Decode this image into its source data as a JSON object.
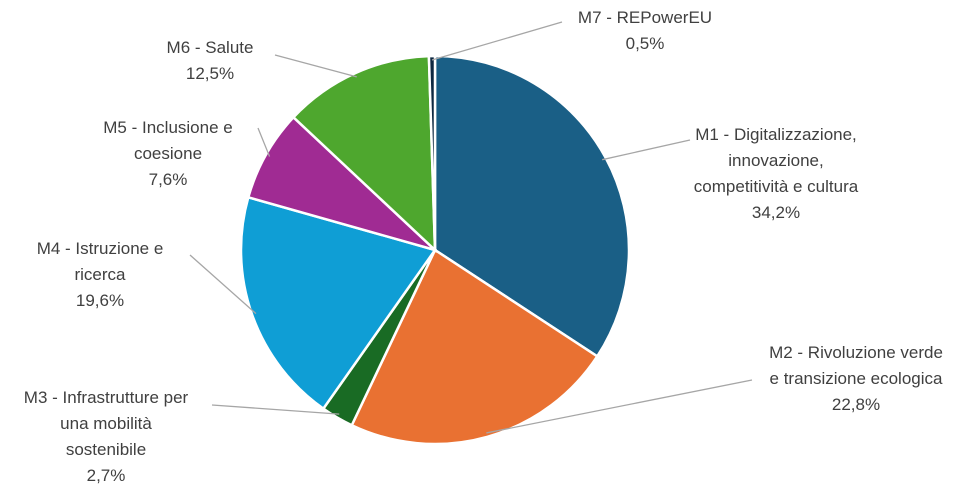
{
  "chart_data": {
    "type": "pie",
    "categories": [
      "M1 - Digitalizzazione, innovazione, competitività e cultura",
      "M2 - Rivoluzione verde e transizione ecologica",
      "M3 - Infrastrutture per una mobilità sostenibile",
      "M4 - Istruzione e ricerca",
      "M5 - Inclusione e coesione",
      "M6 - Salute",
      "M7 - REPowerEU"
    ],
    "values": [
      34.2,
      22.8,
      2.7,
      19.6,
      7.6,
      12.5,
      0.5
    ],
    "value_labels": [
      "34,2%",
      "22,8%",
      "2,7%",
      "19,6%",
      "7,6%",
      "12,5%",
      "0,5%"
    ],
    "colors": [
      "#1a5f86",
      "#e97132",
      "#196b24",
      "#0f9ed5",
      "#a02b93",
      "#4ea72e",
      "#0e2841"
    ]
  }
}
